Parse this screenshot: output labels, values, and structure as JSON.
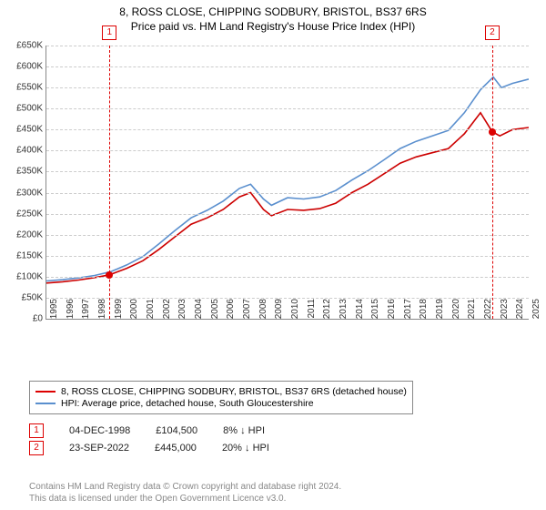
{
  "title_line1": "8, ROSS CLOSE, CHIPPING SODBURY, BRISTOL, BS37 6RS",
  "title_line2": "Price paid vs. HM Land Registry's House Price Index (HPI)",
  "chart": {
    "type": "line",
    "x_start_year": 1995,
    "x_end_year": 2025,
    "y_min": 0,
    "y_max": 650000,
    "y_step": 50000,
    "y_tick_labels": [
      "£0",
      "£50K",
      "£100K",
      "£150K",
      "£200K",
      "£250K",
      "£300K",
      "£350K",
      "£400K",
      "£450K",
      "£500K",
      "£550K",
      "£600K",
      "£650K"
    ],
    "x_tick_years": [
      1995,
      1996,
      1997,
      1998,
      1999,
      2000,
      2001,
      2002,
      2003,
      2004,
      2005,
      2006,
      2007,
      2008,
      2009,
      2010,
      2011,
      2012,
      2013,
      2014,
      2015,
      2016,
      2017,
      2018,
      2019,
      2020,
      2021,
      2022,
      2023,
      2024,
      2025
    ],
    "grid_color": "#cccccc",
    "axis_color": "#888888",
    "background": "#ffffff",
    "series": {
      "price_paid": {
        "color": "#cc0000",
        "width": 1.6,
        "points": [
          [
            1995,
            85000
          ],
          [
            1996,
            88000
          ],
          [
            1997,
            92000
          ],
          [
            1998,
            98000
          ],
          [
            1998.92,
            104500
          ],
          [
            2000,
            120000
          ],
          [
            2001,
            138000
          ],
          [
            2002,
            165000
          ],
          [
            2003,
            195000
          ],
          [
            2004,
            225000
          ],
          [
            2005,
            240000
          ],
          [
            2006,
            260000
          ],
          [
            2007,
            290000
          ],
          [
            2007.7,
            300000
          ],
          [
            2008.5,
            260000
          ],
          [
            2009,
            245000
          ],
          [
            2010,
            260000
          ],
          [
            2011,
            258000
          ],
          [
            2012,
            262000
          ],
          [
            2013,
            275000
          ],
          [
            2014,
            300000
          ],
          [
            2015,
            320000
          ],
          [
            2016,
            345000
          ],
          [
            2017,
            370000
          ],
          [
            2018,
            385000
          ],
          [
            2019,
            395000
          ],
          [
            2020,
            405000
          ],
          [
            2021,
            440000
          ],
          [
            2022,
            490000
          ],
          [
            2022.73,
            445000
          ],
          [
            2023.2,
            435000
          ],
          [
            2024,
            450000
          ],
          [
            2025,
            455000
          ]
        ]
      },
      "hpi": {
        "color": "#5a8fce",
        "width": 1.6,
        "points": [
          [
            1995,
            90000
          ],
          [
            1996,
            93000
          ],
          [
            1997,
            97000
          ],
          [
            1998,
            103000
          ],
          [
            1999,
            112000
          ],
          [
            2000,
            128000
          ],
          [
            2001,
            148000
          ],
          [
            2002,
            178000
          ],
          [
            2003,
            210000
          ],
          [
            2004,
            240000
          ],
          [
            2005,
            258000
          ],
          [
            2006,
            280000
          ],
          [
            2007,
            310000
          ],
          [
            2007.7,
            320000
          ],
          [
            2008.5,
            285000
          ],
          [
            2009,
            270000
          ],
          [
            2010,
            288000
          ],
          [
            2011,
            285000
          ],
          [
            2012,
            290000
          ],
          [
            2013,
            305000
          ],
          [
            2014,
            330000
          ],
          [
            2015,
            352000
          ],
          [
            2016,
            378000
          ],
          [
            2017,
            405000
          ],
          [
            2018,
            422000
          ],
          [
            2019,
            435000
          ],
          [
            2020,
            448000
          ],
          [
            2021,
            490000
          ],
          [
            2022,
            545000
          ],
          [
            2022.8,
            575000
          ],
          [
            2023.3,
            550000
          ],
          [
            2024,
            560000
          ],
          [
            2025,
            570000
          ]
        ]
      }
    },
    "markers": [
      {
        "n": "1",
        "year": 1998.92,
        "value": 104500
      },
      {
        "n": "2",
        "year": 2022.73,
        "value": 445000
      }
    ]
  },
  "legend": {
    "series1": "8, ROSS CLOSE, CHIPPING SODBURY, BRISTOL, BS37 6RS (detached house)",
    "series2": "HPI: Average price, detached house, South Gloucestershire"
  },
  "annotations": [
    {
      "n": "1",
      "date": "04-DEC-1998",
      "price": "£104,500",
      "delta": "8% ↓ HPI"
    },
    {
      "n": "2",
      "date": "23-SEP-2022",
      "price": "£445,000",
      "delta": "20% ↓ HPI"
    }
  ],
  "footer_line1": "Contains HM Land Registry data © Crown copyright and database right 2024.",
  "footer_line2": "This data is licensed under the Open Government Licence v3.0."
}
